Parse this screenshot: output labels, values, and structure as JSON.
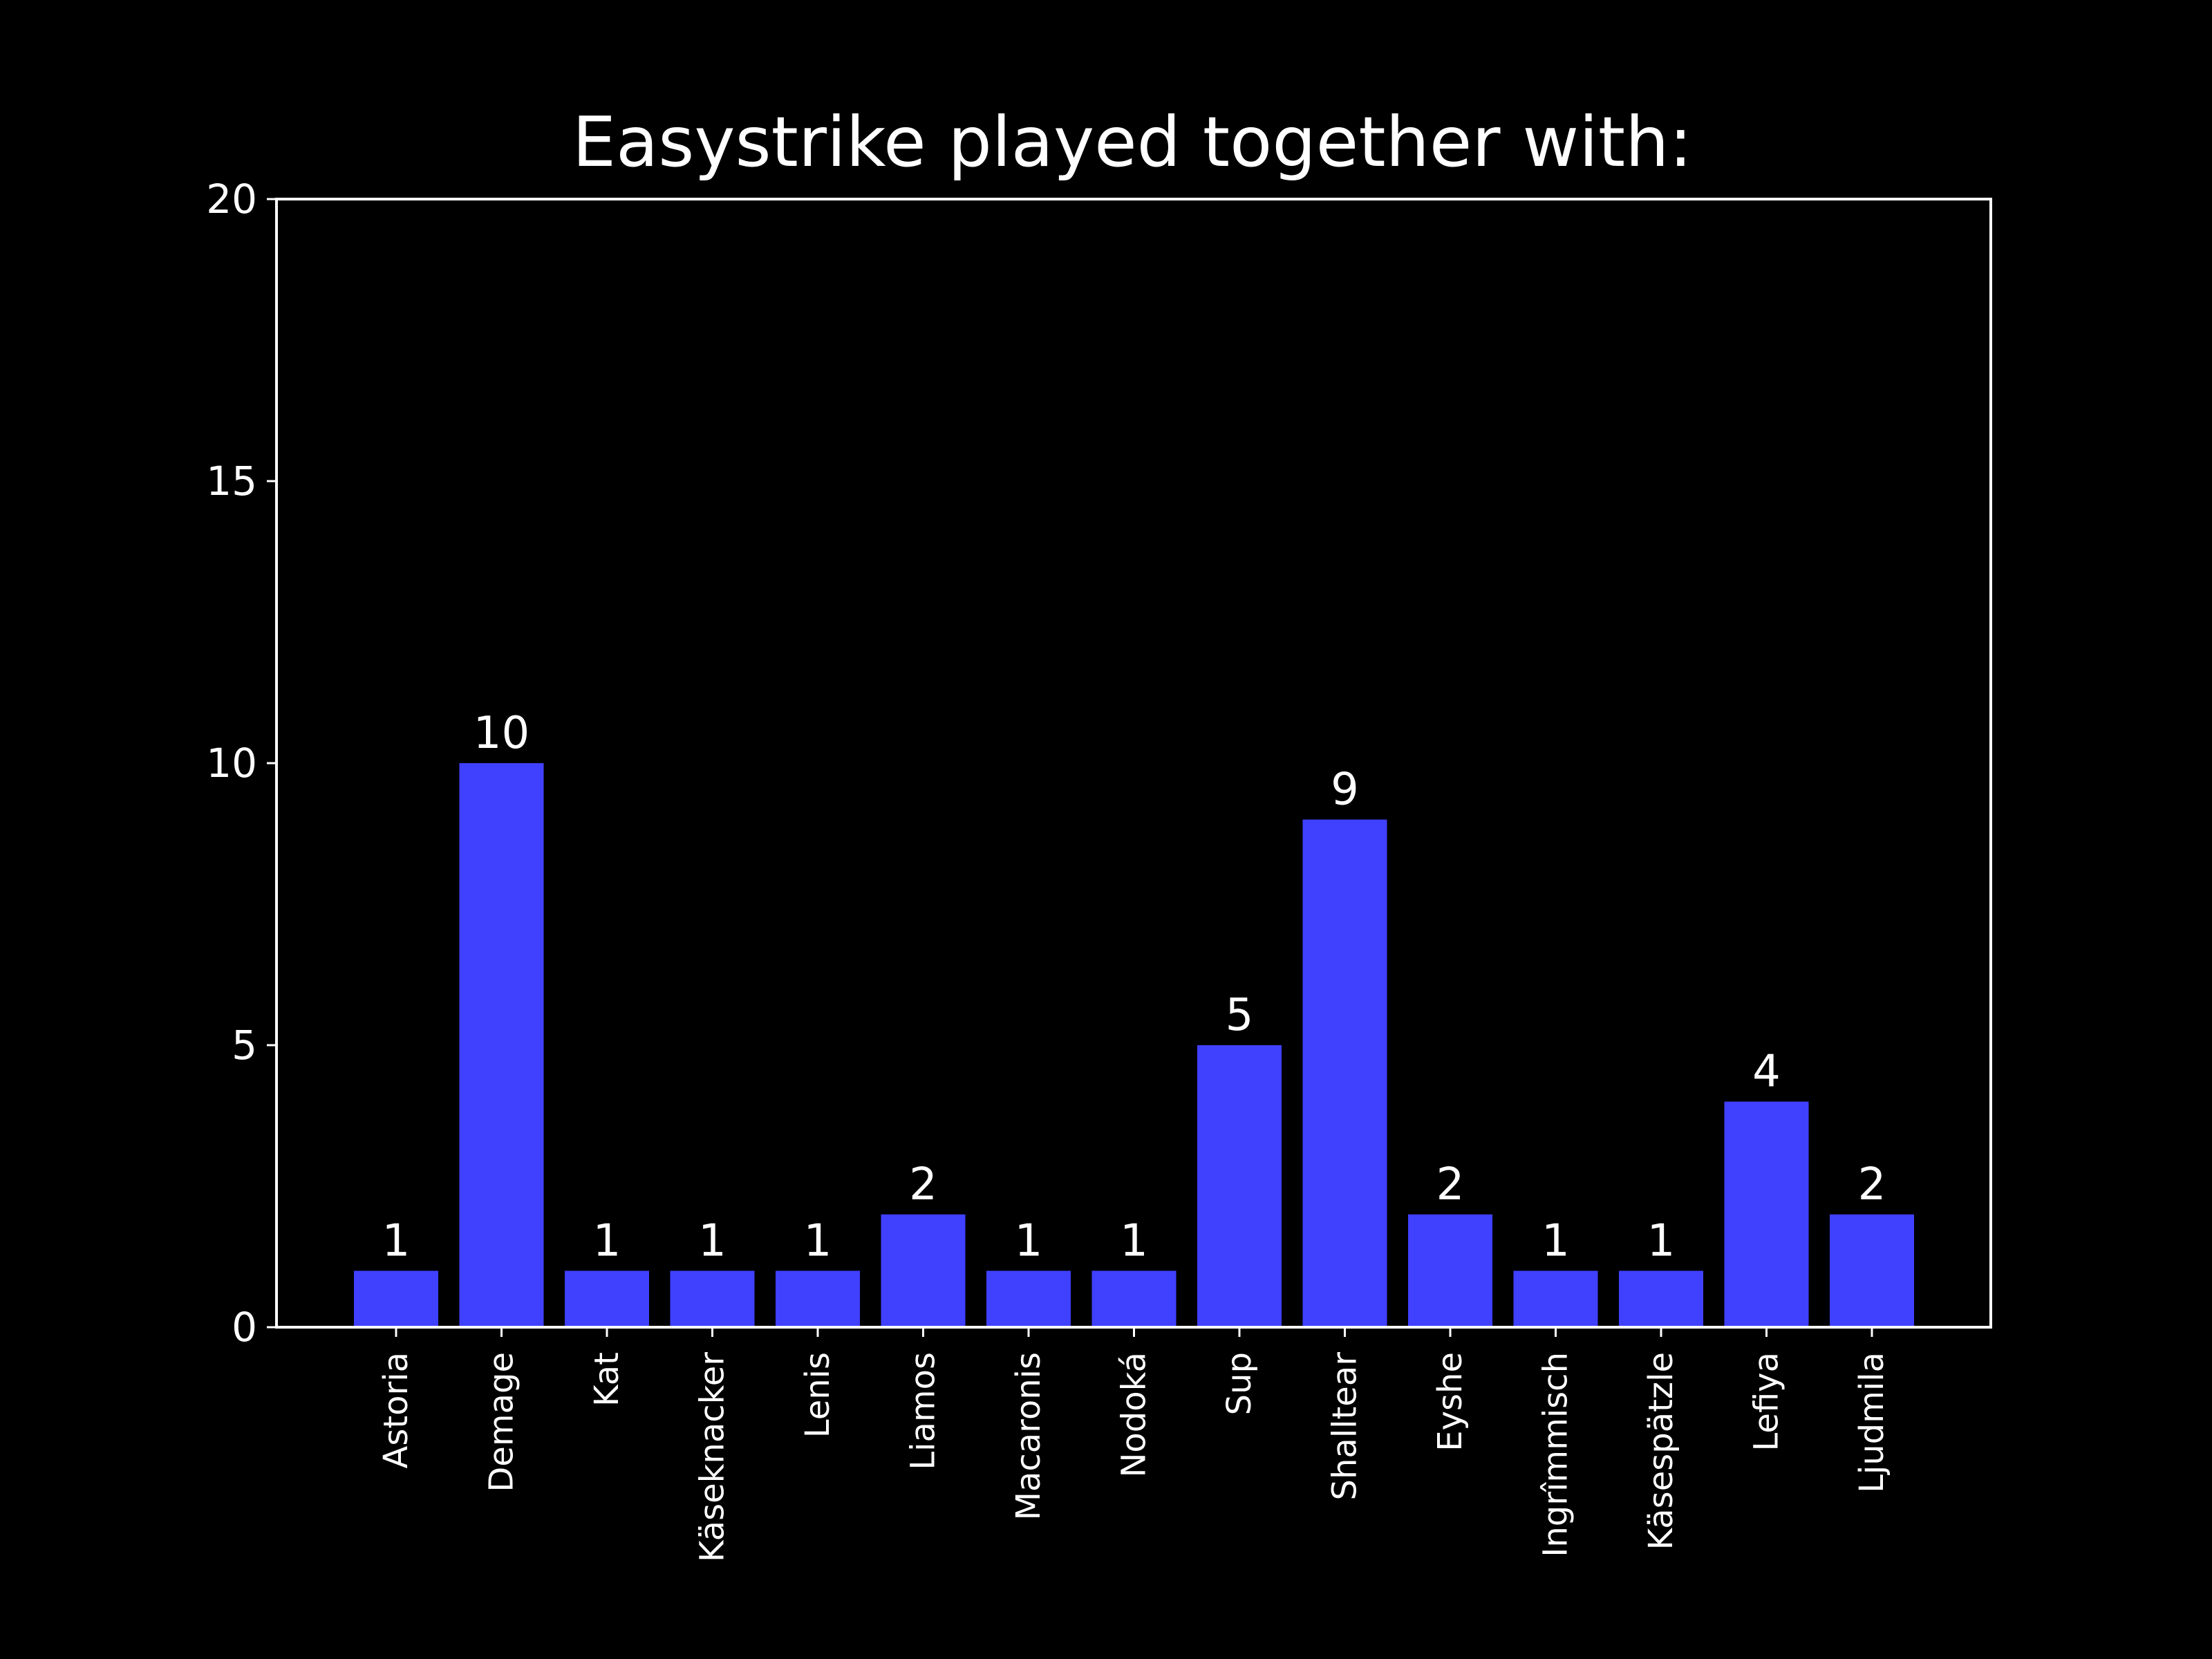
{
  "chart_data": {
    "type": "bar",
    "title": "Easystrike played together with:",
    "xlabel": "",
    "ylabel": "",
    "categories": [
      "Astoria",
      "Demage",
      "Kat",
      "Käseknacker",
      "Lenis",
      "Liamos",
      "Macaronis",
      "Nodoká",
      "Sup",
      "Shalltear",
      "Eyshe",
      "Ingrîmmisch",
      "Käsespätzle",
      "Lefiya",
      "Ljudmila"
    ],
    "values": [
      1,
      10,
      1,
      1,
      1,
      2,
      1,
      1,
      5,
      9,
      2,
      1,
      1,
      4,
      2
    ],
    "data_labels": [
      "1",
      "10",
      "1",
      "1",
      "1",
      "2",
      "1",
      "1",
      "5",
      "9",
      "2",
      "1",
      "1",
      "4",
      "2"
    ],
    "ylim": [
      0,
      20
    ],
    "yticks": [
      0,
      5,
      10,
      15,
      20
    ],
    "ytick_labels": [
      "0",
      "5",
      "10",
      "15",
      "20"
    ],
    "grid": false,
    "legend": "none",
    "colors": {
      "background": "#000000",
      "bar": "#4040ff",
      "text": "#ffffff",
      "axes": "#ffffff"
    }
  }
}
